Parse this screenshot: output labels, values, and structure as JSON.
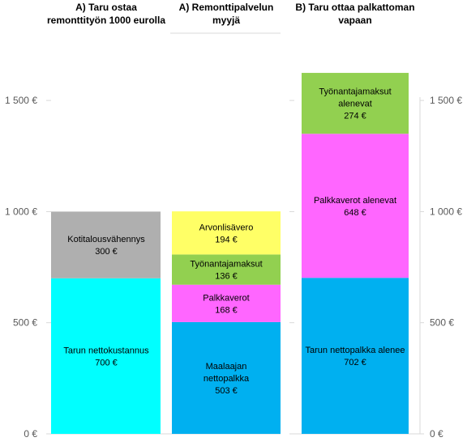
{
  "chart_data": {
    "type": "bar",
    "stacked": true,
    "ylim": [
      0,
      1500
    ],
    "yticks": [
      0,
      500,
      1000,
      1500
    ],
    "ytick_labels": [
      "0 €",
      "500 €",
      "1 000 €",
      "1 500 €"
    ],
    "grid": false,
    "panels": [
      {
        "title": [
          "A) Taru ostaa",
          "remonttityön 1000 eurolla"
        ],
        "segments": [
          {
            "label": [
              "Tarun nettokustannus"
            ],
            "value_label": "700 €",
            "value": 700,
            "color": "#00FFFF"
          },
          {
            "label": [
              "Kotitalousvähennys"
            ],
            "value_label": "300 €",
            "value": 300,
            "color": "#AFAFAF"
          }
        ]
      },
      {
        "title": [
          "A) Remonttipalvelun",
          "myyjä"
        ],
        "segments": [
          {
            "label": [
              "Maalaajan",
              "nettopalkka"
            ],
            "value_label": "503 €",
            "value": 503,
            "color": "#00B0F0"
          },
          {
            "label": [
              "Palkkaverot"
            ],
            "value_label": "168 €",
            "value": 168,
            "color": "#FF66FF"
          },
          {
            "label": [
              "Työnantajamaksut"
            ],
            "value_label": "136 €",
            "value": 136,
            "color": "#92D050"
          },
          {
            "label": [
              "Arvonlisävero"
            ],
            "value_label": "194 €",
            "value": 194,
            "color": "#FFFF66"
          }
        ]
      },
      {
        "title": [
          "B) Taru ottaa palkattoman",
          "vapaan"
        ],
        "segments": [
          {
            "label": [
              "Tarun nettopalkka alenee"
            ],
            "value_label": "702 €",
            "value": 702,
            "color": "#00B0F0"
          },
          {
            "label": [
              "Palkkaverot alenevat"
            ],
            "value_label": "648 €",
            "value": 648,
            "color": "#FF66FF"
          },
          {
            "label": [
              "Työnantajamaksut",
              "alenevat"
            ],
            "value_label": "274 €",
            "value": 274,
            "color": "#92D050"
          }
        ]
      }
    ]
  }
}
